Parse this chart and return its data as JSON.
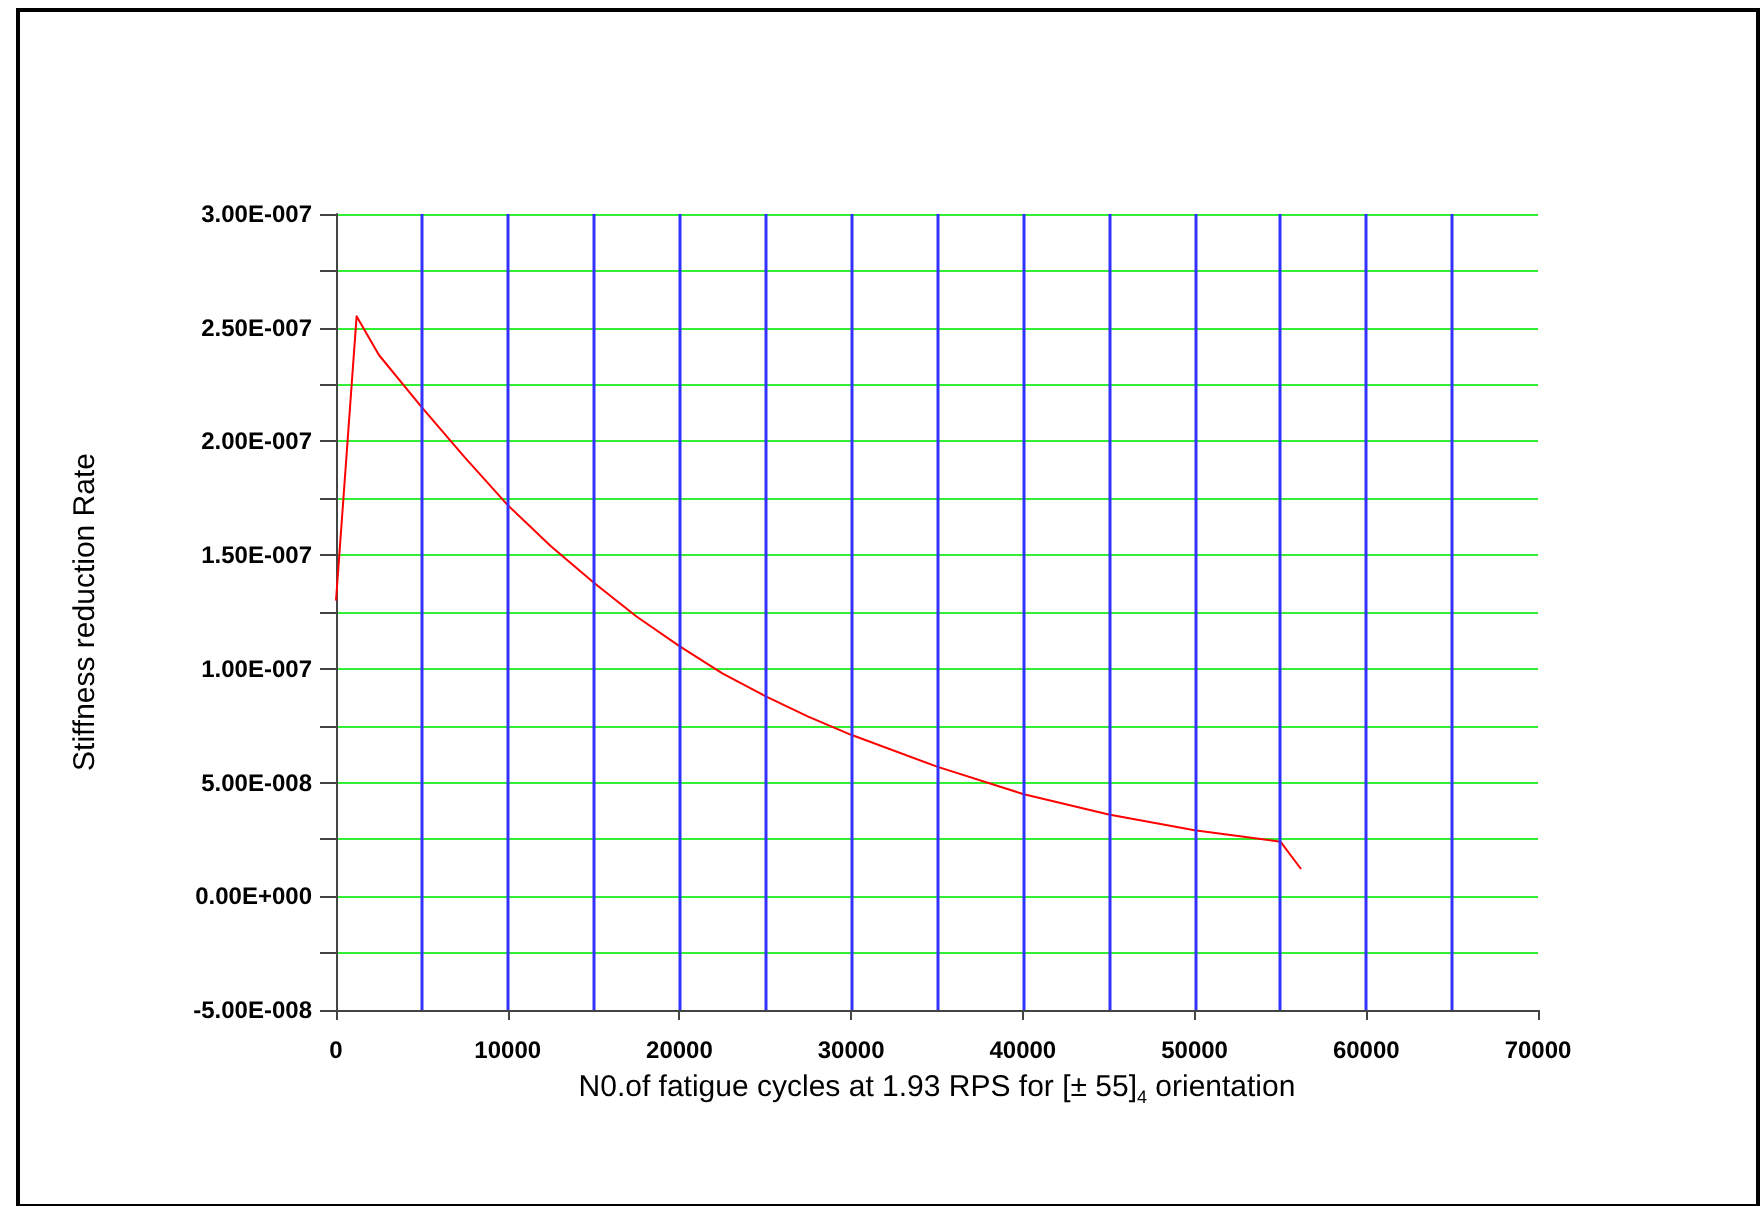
{
  "chart_data": {
    "type": "line",
    "xlabel": "N0.of fatigue cycles at 1.93 RPS for [± 55]$_{4}$ orientation",
    "ylabel": "Stiffness reduction Rate",
    "x": [
      0,
      1200,
      2500,
      5000,
      7500,
      10000,
      12500,
      15000,
      17500,
      20000,
      22500,
      25000,
      27500,
      30000,
      35000,
      40000,
      45000,
      50000,
      55000,
      56200
    ],
    "series": [
      {
        "color": "#ff0000",
        "values": [
          1.3e-07,
          2.55e-07,
          2.38e-07,
          2.15e-07,
          1.93e-07,
          1.72e-07,
          1.54e-07,
          1.38e-07,
          1.23e-07,
          1.1e-07,
          9.8e-08,
          8.8e-08,
          7.9e-08,
          7.1e-08,
          5.7e-08,
          4.5e-08,
          3.6e-08,
          2.9e-08,
          2.4e-08,
          1.2e-08
        ]
      }
    ],
    "xlim": [
      0,
      70000
    ],
    "xticks": [
      0,
      10000,
      20000,
      30000,
      40000,
      50000,
      60000,
      70000
    ],
    "ylim": [
      -5e-08,
      3e-07
    ],
    "yticks": [
      {
        "value": -5e-08,
        "label": "-5.00E-008"
      },
      {
        "value": -2.5e-08,
        "label": null
      },
      {
        "value": 0,
        "label": "0.00E+000"
      },
      {
        "value": 2.5e-08,
        "label": null
      },
      {
        "value": 5e-08,
        "label": "5.00E-008"
      },
      {
        "value": 7.5e-08,
        "label": null
      },
      {
        "value": 1e-07,
        "label": "1.00E-007"
      },
      {
        "value": 1.25e-07,
        "label": null
      },
      {
        "value": 1.5e-07,
        "label": "1.50E-007"
      },
      {
        "value": 1.75e-07,
        "label": null
      },
      {
        "value": 2e-07,
        "label": "2.00E-007"
      },
      {
        "value": 2.25e-07,
        "label": null
      },
      {
        "value": 2.5e-07,
        "label": "2.50E-007"
      },
      {
        "value": 2.75e-07,
        "label": null
      },
      {
        "value": 3e-07,
        "label": "3.00E-007"
      }
    ],
    "grid": true,
    "marker": "none",
    "line_style": "solid"
  }
}
